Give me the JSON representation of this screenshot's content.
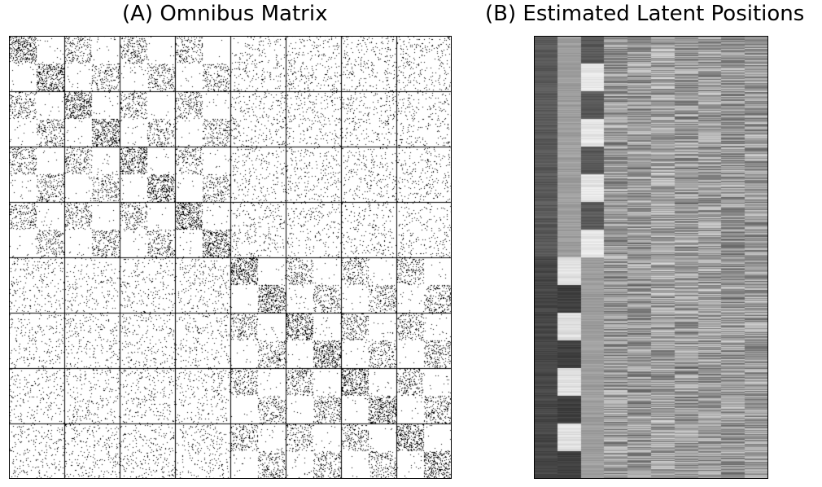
{
  "chart_data": [
    {
      "type": "heatmap",
      "title": "(A) Omnibus Matrix",
      "xlabel": "",
      "ylabel": "",
      "grid": true,
      "colors": {
        "edge": "#000000",
        "background": "#ffffff",
        "gridline": "#000000"
      },
      "num_networks": 8,
      "communities_per_network": 2,
      "network_groups": [
        [
          0,
          1,
          2,
          3
        ],
        [
          4,
          5,
          6,
          7
        ]
      ],
      "block_density": {
        "diagonal_within_community": 0.55,
        "same_group_within_community": 0.3,
        "between_communities": 0.02,
        "different_group": 0.1
      }
    },
    {
      "type": "heatmap",
      "title": "(B) Estimated Latent Positions",
      "xlabel": "",
      "ylabel": "",
      "colormap": "grayscale",
      "num_dimensions": 10,
      "num_row_segments": 16,
      "column_base_levels": [
        0.32,
        0.62,
        0.5,
        0.6,
        0.6,
        0.65,
        0.6,
        0.62,
        0.6,
        0.62
      ],
      "column_segment_pattern": [
        [
          0.35,
          0.35,
          0.35,
          0.35,
          0.35,
          0.35,
          0.35,
          0.35,
          0.28,
          0.28,
          0.28,
          0.28,
          0.28,
          0.28,
          0.28,
          0.28
        ],
        [
          0.62,
          0.62,
          0.62,
          0.62,
          0.62,
          0.62,
          0.62,
          0.62,
          0.88,
          0.25,
          0.88,
          0.25,
          0.88,
          0.25,
          0.88,
          0.25
        ],
        [
          0.35,
          0.9,
          0.35,
          0.9,
          0.35,
          0.9,
          0.35,
          0.9,
          0.62,
          0.62,
          0.62,
          0.62,
          0.62,
          0.62,
          0.62,
          0.62
        ]
      ]
    }
  ]
}
